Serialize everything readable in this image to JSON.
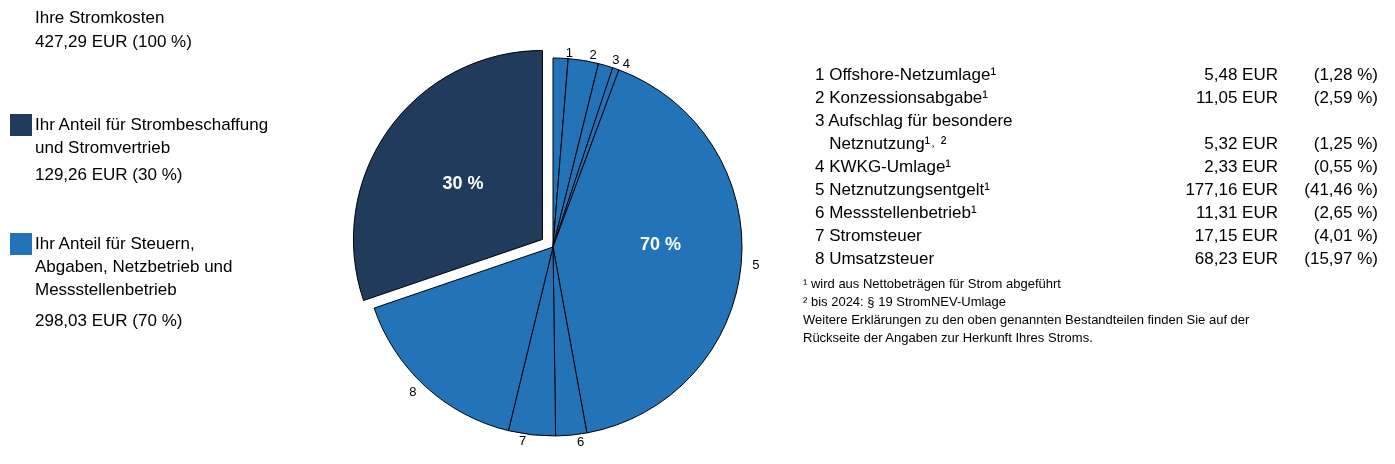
{
  "chart_data": {
    "type": "pie",
    "title": "Ihre Stromkosten",
    "subtitle": "427,29 EUR (100 %)",
    "categories": [
      "1",
      "2",
      "3",
      "4",
      "5",
      "6",
      "7",
      "8",
      null
    ],
    "values": [
      1.28,
      2.59,
      1.25,
      0.55,
      41.46,
      2.65,
      4.01,
      15.97,
      30.24
    ],
    "colors": [
      "#2373b9",
      "#2373b9",
      "#2373b9",
      "#2373b9",
      "#2373b9",
      "#2373b9",
      "#2373b9",
      "#2373b9",
      "#213b5c"
    ],
    "value_labels": [
      null,
      null,
      null,
      null,
      null,
      null,
      null,
      null,
      "30 %"
    ],
    "annotations": [
      "70 %",
      "Ihr Anteil für Strombeschaffung\nund Stromvertrieb",
      "129,26 EUR (30 %)",
      "Ihr Anteil für Steuern,\nAbgaben, Netzbetrieb und\nMessstellenbetrieb",
      "298,03 EUR (70 %)",
      "1 Offshore-Netzumlage¹\t5,48 EUR\t(1,28 %)",
      "2 Konzessionsabgabe¹\t11,05 EUR\t(2,59 %)",
      "3 Aufschlag für besondere\n   Netznutzung¹˒ ²\t5,32 EUR\t(1,25 %)",
      "4 KWKG-Umlage¹\t2,33 EUR\t(0,55 %)",
      "5 Netznutzungsentgelt¹\t177,16 EUR\t(41,46 %)",
      "6 Messstellenbetrieb¹\t11,31 EUR\t(2,65 %)",
      "7 Stromsteuer\t17,15 EUR\t(4,01 %)",
      "8 Umsatzsteuer\t68,23 EUR\t(15,97 %)",
      "¹ wird aus Nettobeträgen für Strom abgeführt",
      "² bis 2024: § 19 StromNEV-Umlage",
      "Weitere Erklärungen zu den oben genannten Bestandteilen finden Sie auf der\nRückseite der Angaben zur Herkunft Ihres Stroms."
    ]
  }
}
